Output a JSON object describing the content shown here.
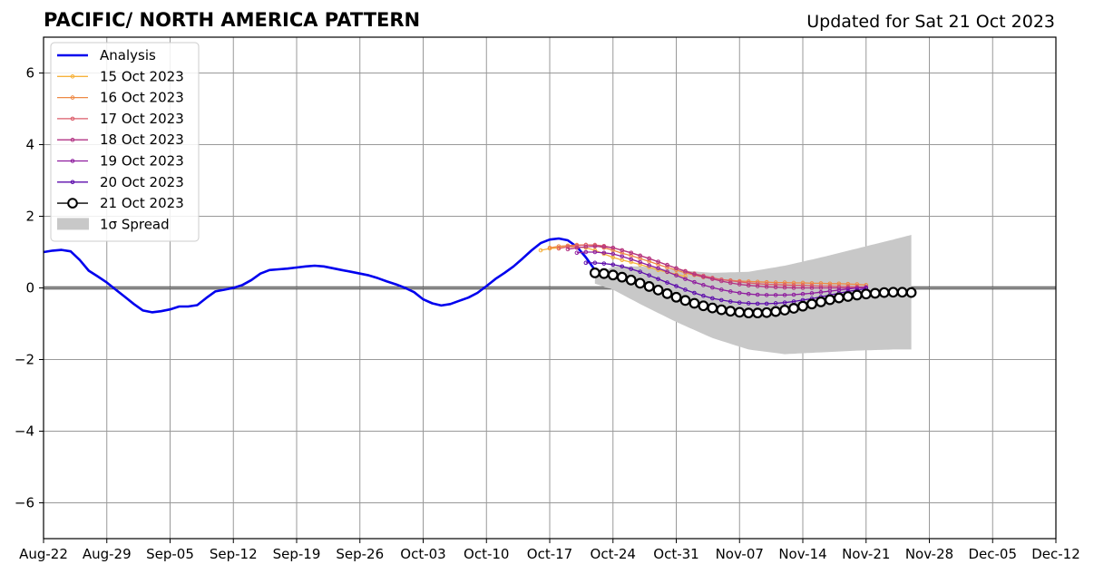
{
  "chart_data": {
    "type": "line",
    "title": "PACIFIC/ NORTH AMERICA PATTERN",
    "subtitle": "Updated for Sat 21 Oct 2023",
    "xlabel": "",
    "ylabel": "",
    "xlim": [
      "2023-08-22",
      "2023-12-12"
    ],
    "ylim": [
      -7,
      7
    ],
    "x_tick_labels": [
      "Aug-22",
      "Aug-29",
      "Sep-05",
      "Sep-12",
      "Sep-19",
      "Sep-26",
      "Oct-03",
      "Oct-10",
      "Oct-17",
      "Oct-24",
      "Oct-31",
      "Nov-07",
      "Nov-14",
      "Nov-21",
      "Nov-28",
      "Dec-05",
      "Dec-12"
    ],
    "y_tick_values": [
      -6,
      -4,
      -2,
      0,
      2,
      4,
      6
    ],
    "y_tick_labels": [
      "−6",
      "−4",
      "−2",
      "0",
      "2",
      "4",
      "6"
    ],
    "grid": true,
    "zero_line": true,
    "legend_placement": "upper-left",
    "colors": {
      "analysis": "#0000ee",
      "spread": "#c8c8c8",
      "grid": "#999999"
    },
    "analysis": {
      "name": "Analysis",
      "color": "#0000ee",
      "points": [
        [
          "2023-08-22",
          1.0
        ],
        [
          "2023-08-23",
          1.04
        ],
        [
          "2023-08-24",
          1.06
        ],
        [
          "2023-08-25",
          1.02
        ],
        [
          "2023-08-26",
          0.78
        ],
        [
          "2023-08-27",
          0.48
        ],
        [
          "2023-08-28",
          0.32
        ],
        [
          "2023-08-29",
          0.15
        ],
        [
          "2023-08-30",
          -0.05
        ],
        [
          "2023-08-31",
          -0.25
        ],
        [
          "2023-09-01",
          -0.45
        ],
        [
          "2023-09-02",
          -0.63
        ],
        [
          "2023-09-03",
          -0.68
        ],
        [
          "2023-09-04",
          -0.65
        ],
        [
          "2023-09-05",
          -0.6
        ],
        [
          "2023-09-06",
          -0.52
        ],
        [
          "2023-09-07",
          -0.52
        ],
        [
          "2023-09-08",
          -0.48
        ],
        [
          "2023-09-09",
          -0.28
        ],
        [
          "2023-09-10",
          -0.1
        ],
        [
          "2023-09-11",
          -0.05
        ],
        [
          "2023-09-12",
          0.0
        ],
        [
          "2023-09-13",
          0.08
        ],
        [
          "2023-09-14",
          0.22
        ],
        [
          "2023-09-15",
          0.4
        ],
        [
          "2023-09-16",
          0.5
        ],
        [
          "2023-09-17",
          0.52
        ],
        [
          "2023-09-18",
          0.54
        ],
        [
          "2023-09-19",
          0.57
        ],
        [
          "2023-09-20",
          0.6
        ],
        [
          "2023-09-21",
          0.62
        ],
        [
          "2023-09-22",
          0.6
        ],
        [
          "2023-09-23",
          0.55
        ],
        [
          "2023-09-24",
          0.5
        ],
        [
          "2023-09-25",
          0.45
        ],
        [
          "2023-09-26",
          0.4
        ],
        [
          "2023-09-27",
          0.35
        ],
        [
          "2023-09-28",
          0.27
        ],
        [
          "2023-09-29",
          0.18
        ],
        [
          "2023-09-30",
          0.1
        ],
        [
          "2023-10-01",
          0.0
        ],
        [
          "2023-10-02",
          -0.12
        ],
        [
          "2023-10-03",
          -0.32
        ],
        [
          "2023-10-04",
          -0.43
        ],
        [
          "2023-10-05",
          -0.49
        ],
        [
          "2023-10-06",
          -0.45
        ],
        [
          "2023-10-07",
          -0.36
        ],
        [
          "2023-10-08",
          -0.27
        ],
        [
          "2023-10-09",
          -0.14
        ],
        [
          "2023-10-10",
          0.05
        ],
        [
          "2023-10-11",
          0.25
        ],
        [
          "2023-10-12",
          0.42
        ],
        [
          "2023-10-13",
          0.6
        ],
        [
          "2023-10-14",
          0.82
        ],
        [
          "2023-10-15",
          1.05
        ],
        [
          "2023-10-16",
          1.25
        ],
        [
          "2023-10-17",
          1.35
        ],
        [
          "2023-10-18",
          1.38
        ],
        [
          "2023-10-19",
          1.33
        ],
        [
          "2023-10-20",
          1.15
        ],
        [
          "2023-10-21",
          0.85
        ],
        [
          "2023-10-22",
          0.5
        ]
      ]
    },
    "forecasts": [
      {
        "name": "15 Oct 2023",
        "color": "#f6b23c",
        "start": "2023-10-16",
        "values": [
          1.05,
          1.1,
          1.12,
          1.15,
          1.15,
          1.12,
          1.05,
          0.95,
          0.85,
          0.78,
          0.72,
          0.65,
          0.58,
          0.5,
          0.44,
          0.38,
          0.32
        ]
      },
      {
        "name": "16 Oct 2023",
        "color": "#ee8a46",
        "start": "2023-10-17",
        "values": [
          1.12,
          1.16,
          1.18,
          1.2,
          1.2,
          1.18,
          1.12,
          1.05,
          0.97,
          0.9,
          0.82,
          0.74,
          0.65,
          0.57,
          0.5,
          0.42,
          0.36,
          0.3,
          0.26,
          0.23,
          0.21,
          0.19,
          0.18,
          0.17,
          0.16,
          0.15,
          0.15,
          0.14,
          0.14,
          0.13,
          0.13,
          0.12,
          0.12,
          0.11,
          0.1,
          0.08
        ]
      },
      {
        "name": "17 Oct 2023",
        "color": "#dc5c6a",
        "start": "2023-10-18",
        "values": [
          1.1,
          1.15,
          1.18,
          1.2,
          1.2,
          1.17,
          1.12,
          1.05,
          0.98,
          0.9,
          0.82,
          0.73,
          0.64,
          0.55,
          0.47,
          0.4,
          0.34,
          0.28,
          0.23,
          0.2,
          0.17,
          0.14,
          0.12,
          0.1,
          0.09,
          0.08,
          0.07,
          0.07,
          0.06,
          0.05,
          0.05,
          0.04,
          0.04,
          0.03,
          0.02
        ]
      },
      {
        "name": "18 Oct 2023",
        "color": "#b33384",
        "start": "2023-10-19",
        "values": [
          1.08,
          1.12,
          1.15,
          1.16,
          1.15,
          1.12,
          1.05,
          0.98,
          0.9,
          0.82,
          0.73,
          0.64,
          0.55,
          0.46,
          0.38,
          0.31,
          0.25,
          0.19,
          0.14,
          0.1,
          0.07,
          0.05,
          0.03,
          0.02,
          0.01,
          0.0,
          0.0,
          0.0,
          0.0,
          0.0,
          0.0,
          0.0,
          0.0,
          0.0
        ]
      },
      {
        "name": "19 Oct 2023",
        "color": "#8e1c9e",
        "start": "2023-10-20",
        "values": [
          0.98,
          1.0,
          1.0,
          0.98,
          0.95,
          0.88,
          0.8,
          0.72,
          0.63,
          0.55,
          0.45,
          0.35,
          0.25,
          0.16,
          0.08,
          0.01,
          -0.05,
          -0.1,
          -0.14,
          -0.17,
          -0.19,
          -0.2,
          -0.2,
          -0.2,
          -0.19,
          -0.17,
          -0.15,
          -0.12,
          -0.09,
          -0.06,
          -0.03,
          0.0,
          0.02
        ]
      },
      {
        "name": "20 Oct 2023",
        "color": "#5c0bab",
        "start": "2023-10-21",
        "values": [
          0.7,
          0.7,
          0.68,
          0.65,
          0.6,
          0.53,
          0.45,
          0.35,
          0.25,
          0.15,
          0.05,
          -0.05,
          -0.14,
          -0.22,
          -0.29,
          -0.34,
          -0.38,
          -0.41,
          -0.43,
          -0.44,
          -0.44,
          -0.43,
          -0.41,
          -0.38,
          -0.34,
          -0.3,
          -0.25,
          -0.2,
          -0.15,
          -0.1,
          -0.06,
          -0.02
        ]
      },
      {
        "name": "21 Oct 2023",
        "color": "#000000",
        "start": "2023-10-22",
        "values": [
          0.42,
          0.4,
          0.36,
          0.3,
          0.22,
          0.13,
          0.04,
          -0.06,
          -0.16,
          -0.26,
          -0.35,
          -0.43,
          -0.5,
          -0.56,
          -0.61,
          -0.65,
          -0.68,
          -0.7,
          -0.7,
          -0.69,
          -0.66,
          -0.62,
          -0.57,
          -0.51,
          -0.45,
          -0.39,
          -0.33,
          -0.28,
          -0.24,
          -0.2,
          -0.17,
          -0.15,
          -0.13,
          -0.12,
          -0.12,
          -0.13
        ]
      }
    ],
    "spread": {
      "name": "1σ Spread",
      "color": "#c8c8c8",
      "points": [
        [
          "2023-10-22",
          0.32,
          0.12
        ],
        [
          "2023-10-24",
          0.6,
          -0.05
        ],
        [
          "2023-10-27",
          0.6,
          -0.45
        ],
        [
          "2023-10-31",
          0.5,
          -0.95
        ],
        [
          "2023-11-04",
          0.42,
          -1.4
        ],
        [
          "2023-11-08",
          0.45,
          -1.72
        ],
        [
          "2023-11-12",
          0.62,
          -1.85
        ],
        [
          "2023-11-16",
          0.85,
          -1.8
        ],
        [
          "2023-11-20",
          1.1,
          -1.75
        ],
        [
          "2023-11-24",
          1.35,
          -1.72
        ],
        [
          "2023-11-26",
          1.48,
          -1.72
        ]
      ]
    },
    "legend": [
      {
        "label": "Analysis",
        "kind": "line"
      },
      {
        "label": "15 Oct 2023",
        "kind": "dots"
      },
      {
        "label": "16 Oct 2023",
        "kind": "dots"
      },
      {
        "label": "17 Oct 2023",
        "kind": "dots"
      },
      {
        "label": "18 Oct 2023",
        "kind": "dots"
      },
      {
        "label": "19 Oct 2023",
        "kind": "dots"
      },
      {
        "label": "20 Oct 2023",
        "kind": "dots"
      },
      {
        "label": "21 Oct 2023",
        "kind": "circles"
      },
      {
        "label": "1σ Spread",
        "kind": "patch"
      }
    ]
  }
}
